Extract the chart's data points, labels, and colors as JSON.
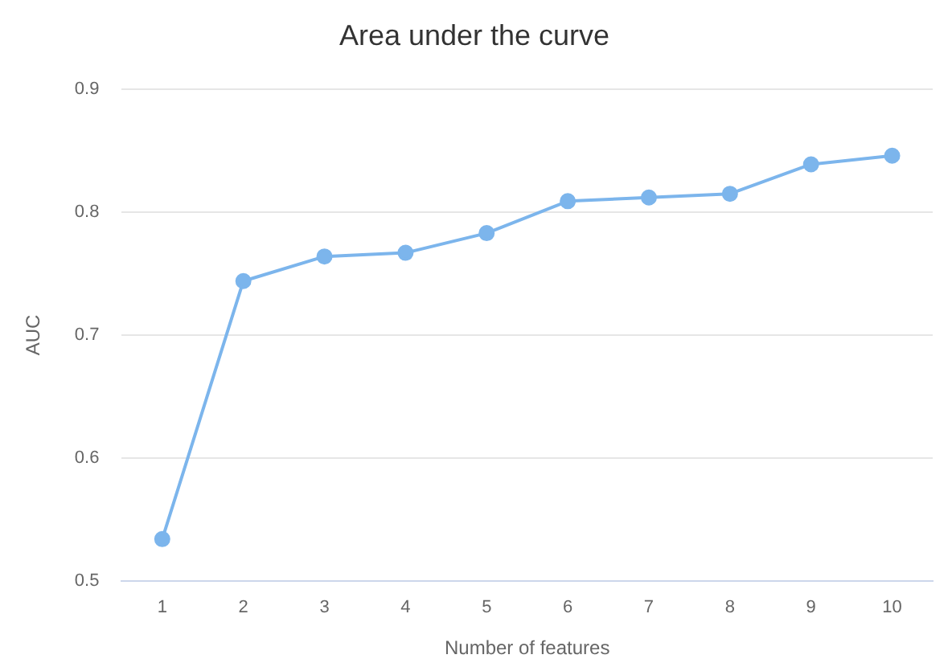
{
  "chart_data": {
    "type": "line",
    "title": "Area under the curve",
    "xlabel": "Number of features",
    "ylabel": "AUC",
    "categories": [
      "1",
      "2",
      "3",
      "4",
      "5",
      "6",
      "7",
      "8",
      "9",
      "10"
    ],
    "series": [
      {
        "color": "#7cb5ec",
        "values": [
          0.534,
          0.744,
          0.764,
          0.767,
          0.783,
          0.809,
          0.812,
          0.815,
          0.839,
          0.846
        ]
      }
    ],
    "ylim": [
      0.5,
      0.9
    ],
    "yticks": [
      0.5,
      0.6,
      0.7,
      0.8,
      0.9
    ],
    "grid": "y",
    "legend": false,
    "marker": "circle",
    "line_style": "solid"
  }
}
